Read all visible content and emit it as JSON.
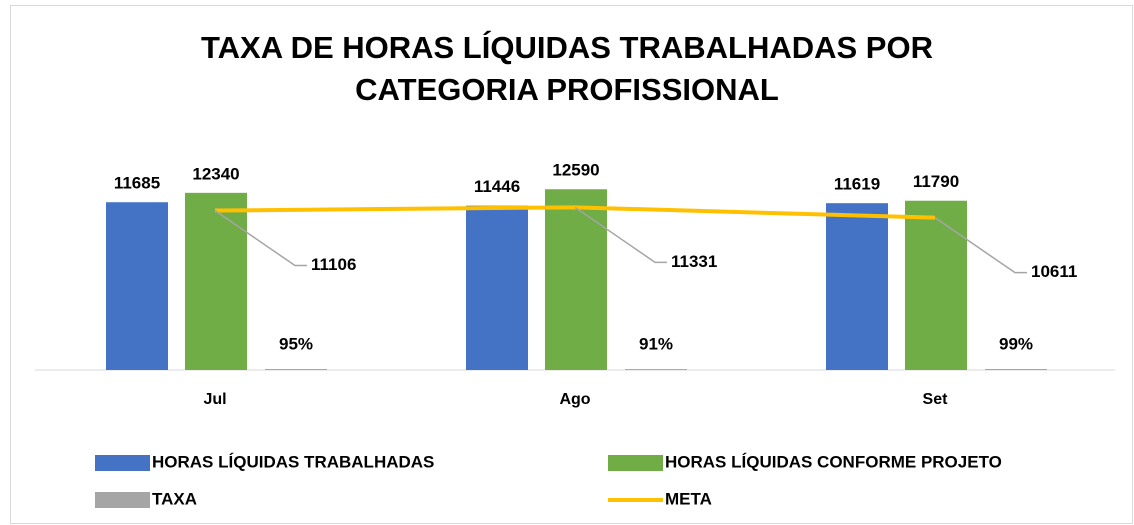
{
  "chart_data": {
    "type": "bar",
    "title": [
      "TAXA DE HORAS LÍQUIDAS  TRABALHADAS POR",
      "CATEGORIA PROFISSIONAL"
    ],
    "categories": [
      "Jul",
      "Ago",
      "Set"
    ],
    "ylim": [
      0,
      14000
    ],
    "y2lim": [
      0,
      20000
    ],
    "series": [
      {
        "name": "HORAS LÍQUIDAS TRABALHADAS",
        "color": "#4472c4",
        "values": [
          11685,
          11446,
          11619
        ]
      },
      {
        "name": "HORAS LÍQUIDAS CONFORME PROJETO",
        "color": "#70ad47",
        "values": [
          12340,
          12590,
          11790
        ]
      },
      {
        "name": "TAXA",
        "color": "#a5a5a5",
        "axis": "y2",
        "values": [
          95,
          91,
          99
        ],
        "value_labels": [
          "95%",
          "91%",
          "99%"
        ]
      },
      {
        "name": "META",
        "color": "#ffc000",
        "type": "line",
        "values": [
          11106,
          11331,
          10611
        ]
      }
    ]
  }
}
